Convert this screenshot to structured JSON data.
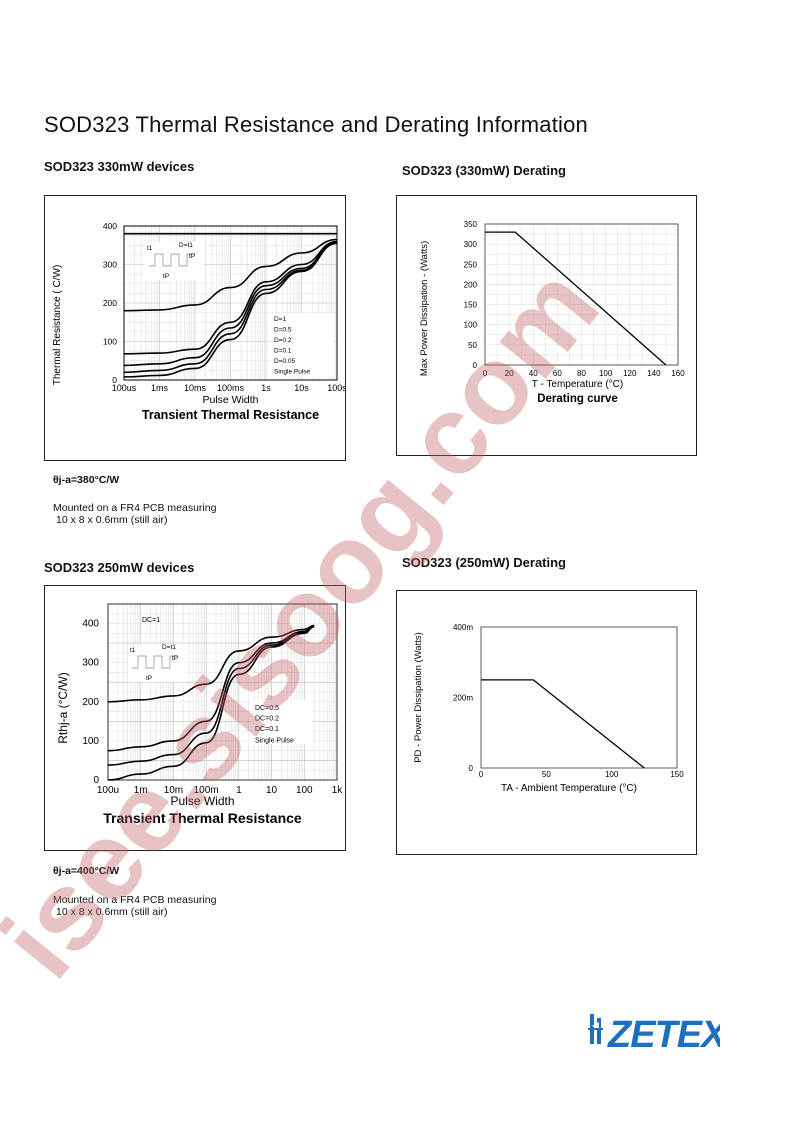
{
  "page": {
    "title": "SOD323 Thermal Resistance and Derating Information",
    "watermark": "isee.sisoog.com",
    "logo": "ZETEX"
  },
  "sections": {
    "s1_title": "SOD323 330mW devices",
    "s2_title": "SOD323 (330mW) Derating",
    "s3_title": "SOD323 250mW devices",
    "s4_title": "SOD323 (250mW) Derating"
  },
  "notes": {
    "n1_theta": "θj-a=380°C/W",
    "n1_line1": "Mounted on a FR4 PCB measuring",
    "n1_line2": "10 x 8 x 0.6mm (still air)",
    "n2_theta": "θj-a=400°C/W",
    "n2_line1": "Mounted on a FR4 PCB measuring",
    "n2_line2": "10 x 8 x 0.6mm (still air)"
  },
  "chart_data": [
    {
      "type": "line",
      "title": "Transient Thermal Resistance",
      "xlabel": "Pulse Width",
      "ylabel": "Thermal Resistance ( C/W)",
      "x_ticks": [
        "100us",
        "1ms",
        "10ms",
        "100ms",
        "1s",
        "10s",
        "100s"
      ],
      "y_ticks": [
        "0",
        "100",
        "200",
        "300",
        "400"
      ],
      "ylim": [
        0,
        400
      ],
      "legend": [
        "D=1",
        "D=0.5",
        "D=0.2",
        "D=0.1",
        "D=0.05",
        "Single Pulse"
      ],
      "inset_labels": [
        "t1",
        "D=t1",
        "tP",
        "tP"
      ],
      "x_decades": [
        0,
        1,
        2,
        3,
        4,
        5,
        6
      ],
      "series": [
        {
          "name": "D=1",
          "values": [
            380,
            380,
            380,
            380,
            380,
            380,
            380
          ]
        },
        {
          "name": "D=0.5",
          "values": [
            180,
            182,
            195,
            240,
            295,
            330,
            365
          ]
        },
        {
          "name": "D=0.2",
          "values": [
            68,
            70,
            80,
            150,
            255,
            300,
            360
          ]
        },
        {
          "name": "D=0.1",
          "values": [
            38,
            42,
            58,
            135,
            245,
            290,
            358
          ]
        },
        {
          "name": "D=0.05",
          "values": [
            20,
            25,
            42,
            120,
            235,
            285,
            356
          ]
        },
        {
          "name": "Single Pulse",
          "values": [
            8,
            12,
            30,
            105,
            225,
            282,
            355
          ]
        }
      ]
    },
    {
      "type": "line",
      "title": "Derating curve",
      "xlabel": "T - Temperature (°C)",
      "ylabel": "Max Power Dissipation - (Watts)",
      "x_ticks": [
        "0",
        "20",
        "40",
        "60",
        "80",
        "100",
        "120",
        "140",
        "160"
      ],
      "y_ticks": [
        "0",
        "50",
        "100",
        "150",
        "200",
        "250",
        "300",
        "350"
      ],
      "xlim": [
        0,
        160
      ],
      "ylim": [
        0,
        350
      ],
      "x": [
        0,
        25,
        150
      ],
      "values": [
        330,
        330,
        0
      ]
    },
    {
      "type": "line",
      "title": "Transient Thermal Resistance",
      "xlabel": "Pulse Width",
      "ylabel": "Rthj-a (°C/W)",
      "x_ticks": [
        "100u",
        "1m",
        "10m",
        "100m",
        "1",
        "10",
        "100",
        "1k"
      ],
      "y_ticks": [
        "0",
        "100",
        "200",
        "300",
        "400"
      ],
      "ylim": [
        0,
        450
      ],
      "legend": [
        "DC=1",
        "DC=0.5",
        "DC=0.2",
        "DC=0.1",
        "Single Pulse"
      ],
      "inset_labels": [
        "t1",
        "D=t1",
        "tP",
        "tP"
      ],
      "x_decades": [
        0,
        1,
        2,
        3,
        4,
        5,
        6,
        6.3
      ],
      "series": [
        {
          "name": "DC=0.5",
          "values": [
            200,
            205,
            215,
            245,
            330,
            365,
            385,
            395
          ]
        },
        {
          "name": "DC=0.2",
          "values": [
            75,
            85,
            100,
            150,
            300,
            350,
            380,
            393
          ]
        },
        {
          "name": "DC=0.1",
          "values": [
            38,
            48,
            65,
            120,
            285,
            345,
            378,
            392
          ]
        },
        {
          "name": "Single Pulse",
          "values": [
            0,
            15,
            35,
            95,
            270,
            340,
            375,
            392
          ]
        }
      ]
    },
    {
      "type": "line",
      "title": "",
      "xlabel": "TA - Ambient Temperature (°C)",
      "ylabel": "PD - Power Dissipation (Watts)",
      "x_ticks": [
        "0",
        "50",
        "100",
        "150"
      ],
      "y_ticks": [
        "0",
        "200m",
        "400m"
      ],
      "xlim": [
        0,
        150
      ],
      "ylim": [
        0,
        0.4
      ],
      "x": [
        0,
        40,
        125
      ],
      "values": [
        0.25,
        0.25,
        0
      ]
    }
  ]
}
